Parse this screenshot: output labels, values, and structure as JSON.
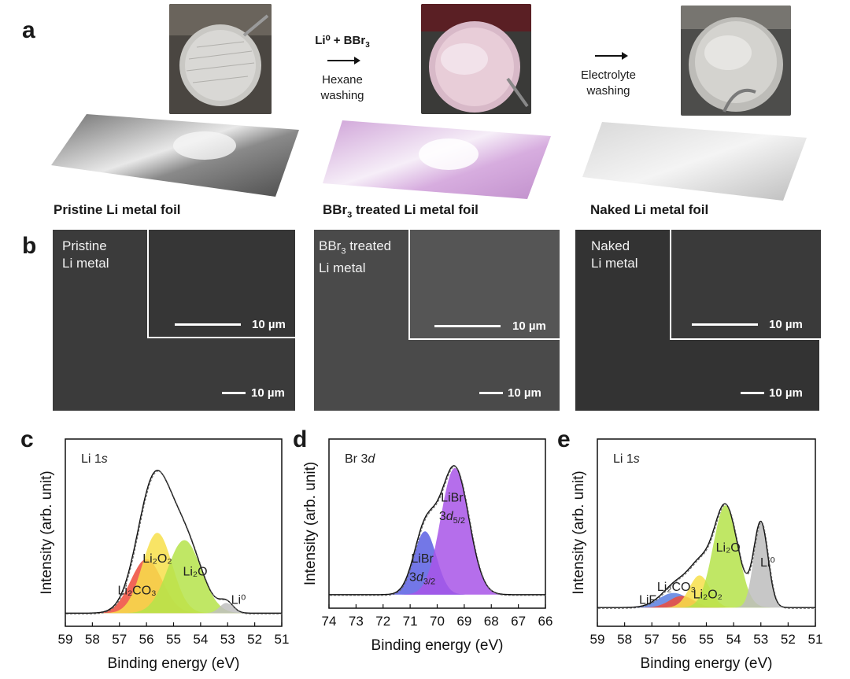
{
  "panel_a": {
    "label": "a",
    "step1": {
      "reactant": "Li⁰ + BBr",
      "reactant_sub": "3",
      "line1": "Hexane",
      "line2": "washing"
    },
    "step2": {
      "line1": "Electrolyte",
      "line2": "washing"
    },
    "captions": {
      "pristine": "Pristine Li metal foil",
      "bbr3_pre": "BBr",
      "bbr3_sub": "3",
      "bbr3_post": " treated Li metal foil",
      "naked": "Naked Li metal foil"
    }
  },
  "panel_b": {
    "label": "b",
    "sem": [
      {
        "l1": "Pristine",
        "l2": "Li metal",
        "inset_scale": "10 µm",
        "main_scale": "10 µm"
      },
      {
        "l1a": "BBr",
        "l1sub": "3",
        "l1b": " treated",
        "l2": "Li metal",
        "inset_scale": "10 µm",
        "main_scale": "10 µm"
      },
      {
        "l1": "Naked",
        "l2": "Li metal",
        "inset_scale": "10 µm",
        "main_scale": "10 µm"
      }
    ]
  },
  "chart_data": [
    {
      "panel": "c",
      "type": "area",
      "annotation": "Li 1s",
      "xlabel": "Binding energy (eV)",
      "ylabel": "Intensity (arb. unit)",
      "xlim": [
        59,
        51
      ],
      "x_ticks": [
        59,
        58,
        57,
        56,
        55,
        54,
        53,
        52,
        51
      ],
      "series": [
        {
          "name": "Li2CO3",
          "label": "Li₂CO₃",
          "color": "#ee4b3a",
          "center": 56.0,
          "height": 0.37,
          "width": 0.58
        },
        {
          "name": "Li2O2",
          "label": "Li₂O₂",
          "color": "#f7df4a",
          "center": 55.6,
          "height": 0.55,
          "width": 0.55
        },
        {
          "name": "Li2O",
          "label": "Li₂O",
          "color": "#b5e34a",
          "center": 54.6,
          "height": 0.5,
          "width": 0.62
        },
        {
          "name": "Li0",
          "label": "Li⁰",
          "color": "#bfbfbf",
          "center": 53.05,
          "height": 0.07,
          "width": 0.25
        }
      ]
    },
    {
      "panel": "d",
      "type": "area",
      "annotation": "Br 3d",
      "xlabel": "Binding energy (eV)",
      "ylabel": "Intensity (arb. unit)",
      "xlim": [
        74,
        66
      ],
      "x_ticks": [
        74,
        73,
        72,
        71,
        70,
        69,
        68,
        67,
        66
      ],
      "series": [
        {
          "name": "LiBr 3d3/2",
          "label_top": "LiBr",
          "label_bot": "3d",
          "label_sub": "3/2",
          "color": "#5b5fe3",
          "center": 70.45,
          "height": 0.48,
          "width": 0.42
        },
        {
          "name": "LiBr 3d5/2",
          "label_top": "LiBr",
          "label_bot": "3d",
          "label_sub": "5/2",
          "color": "#a855e8",
          "center": 69.35,
          "height": 0.96,
          "width": 0.52
        }
      ]
    },
    {
      "panel": "e",
      "type": "area",
      "annotation": "Li 1s",
      "xlabel": "Binding energy (eV)",
      "ylabel": "Intensity (arb. unit)",
      "xlim": [
        59,
        51
      ],
      "x_ticks": [
        59,
        58,
        57,
        56,
        55,
        54,
        53,
        52,
        51
      ],
      "series": [
        {
          "name": "LiF",
          "label": "LiF",
          "color": "#5b7fe0",
          "center": 56.2,
          "height": 0.1,
          "width": 0.55
        },
        {
          "name": "Li2CO3",
          "label": "Li₂CO₃",
          "color": "#ee4b3a",
          "center": 55.9,
          "height": 0.08,
          "width": 0.45
        },
        {
          "name": "Li2O2",
          "label": "Li₂O₂",
          "color": "#f7df4a",
          "center": 55.25,
          "height": 0.22,
          "width": 0.38
        },
        {
          "name": "Li2O",
          "label": "Li₂O",
          "color": "#b5e34a",
          "center": 54.3,
          "height": 0.7,
          "width": 0.45
        },
        {
          "name": "Li0",
          "label": "Li⁰",
          "color": "#bdbdbd",
          "center": 53.0,
          "height": 0.58,
          "width": 0.26
        }
      ]
    }
  ]
}
